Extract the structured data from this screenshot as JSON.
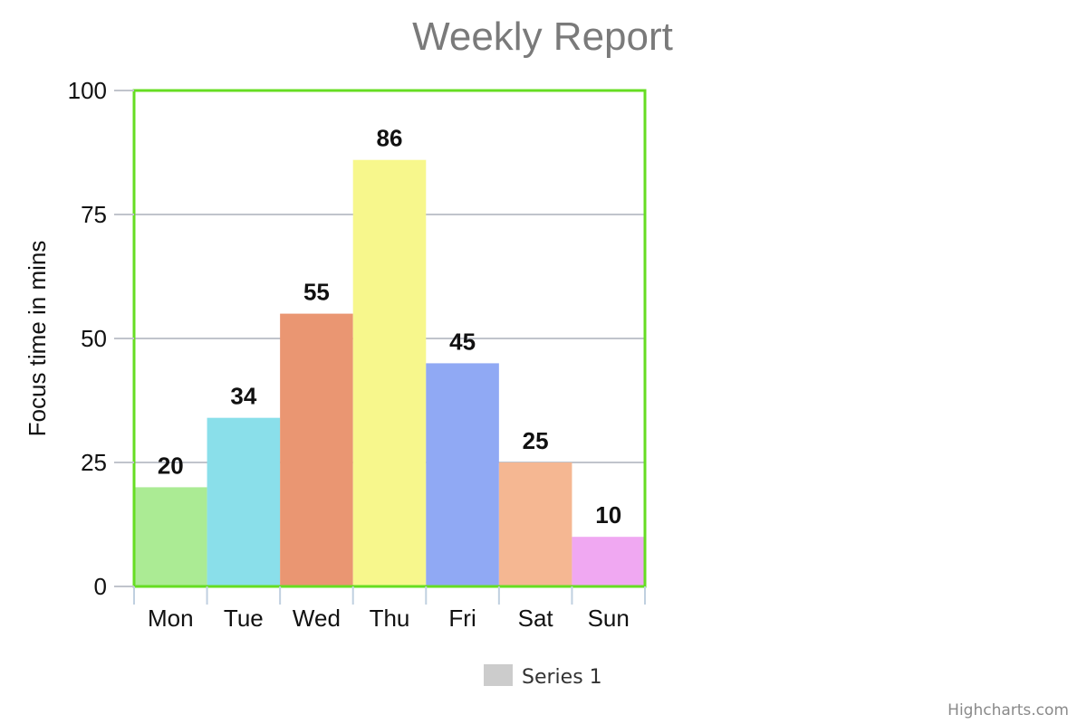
{
  "chart_data": {
    "type": "bar",
    "title": "Weekly Report",
    "xlabel": "",
    "ylabel": "Focus time in mins",
    "ylim": [
      0,
      100
    ],
    "yticks": [
      0,
      25,
      50,
      75,
      100
    ],
    "categories": [
      "Mon",
      "Tue",
      "Wed",
      "Thu",
      "Fri",
      "Sat",
      "Sun"
    ],
    "series": [
      {
        "name": "Series 1",
        "values": [
          20,
          34,
          55,
          86,
          45,
          25,
          10
        ]
      }
    ],
    "bar_colors": [
      "#abeb94",
      "#8adfea",
      "#ea9672",
      "#f7f78c",
      "#90a9f4",
      "#f5b792",
      "#f0a8f2"
    ],
    "data_labels": true,
    "grid": true,
    "legend": {
      "position": "bottom-center",
      "swatch_color": "#cccccc"
    },
    "plot_border_color": "#66dd22",
    "grid_color": "#c0c4cc"
  },
  "credit": "Highcharts.com"
}
